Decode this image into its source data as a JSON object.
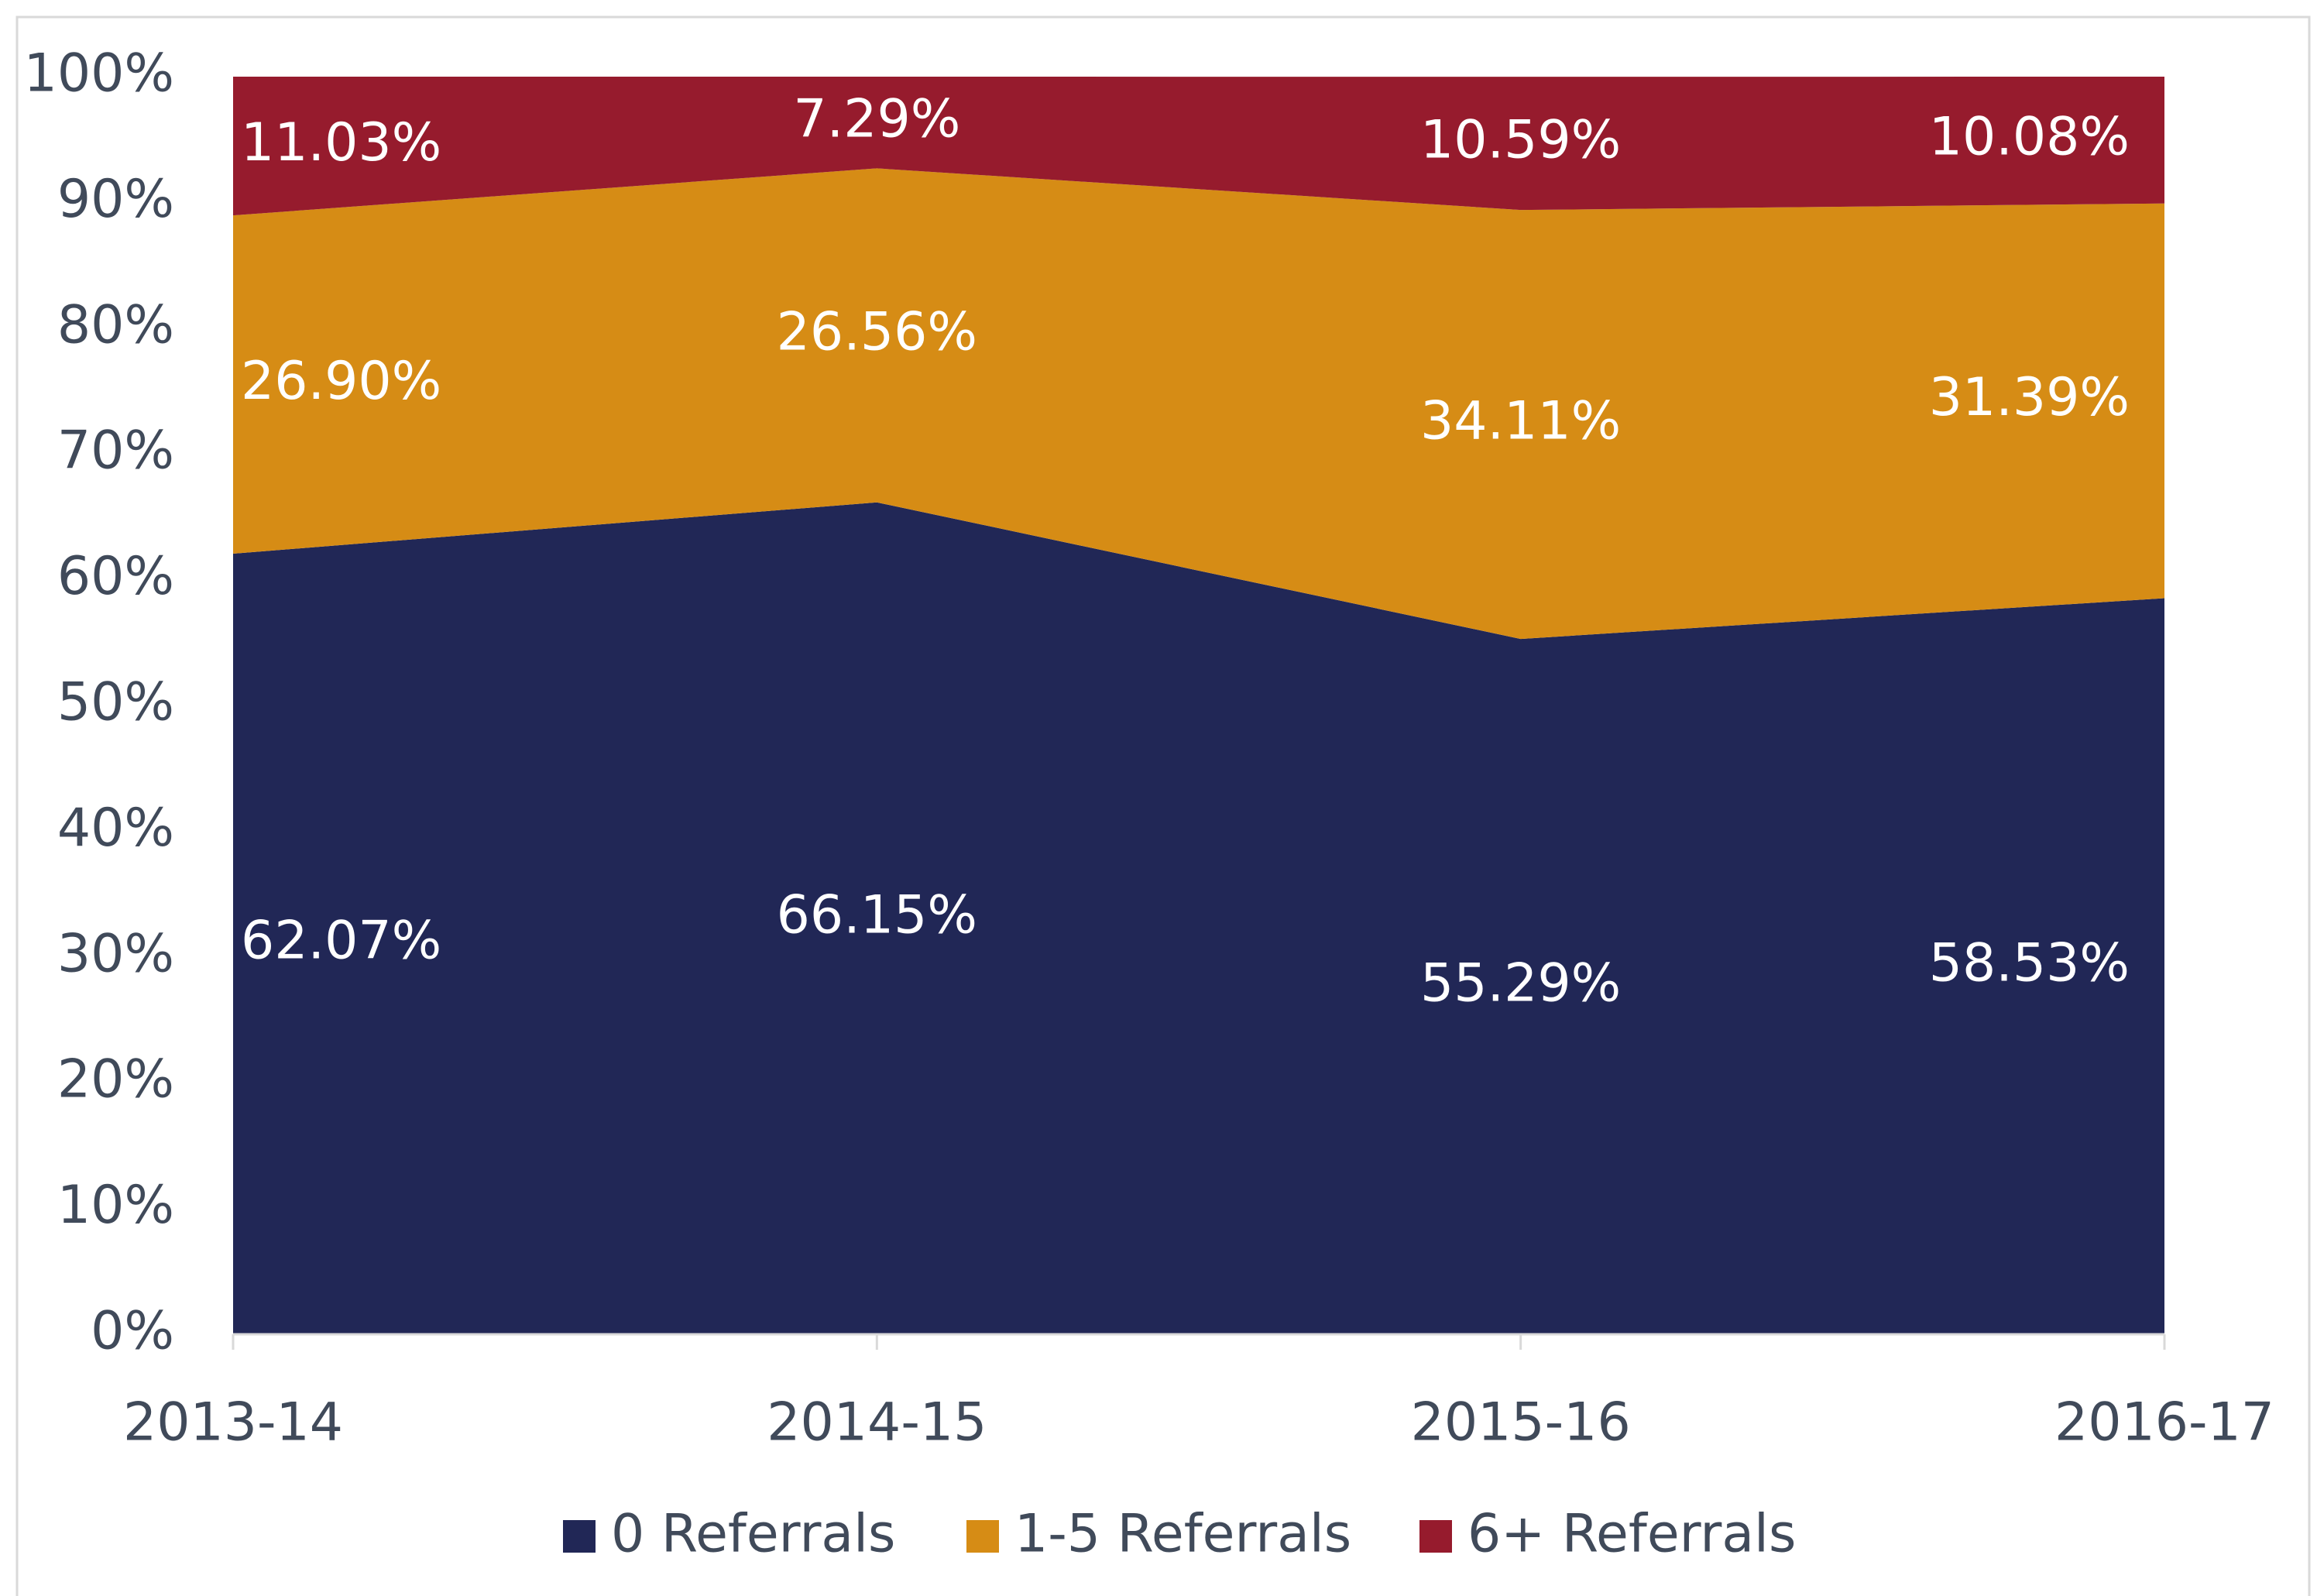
{
  "chart_data": {
    "type": "stacked_area",
    "categories": [
      "2013-14",
      "2014-15",
      "2015-16",
      "2016-17"
    ],
    "series": [
      {
        "name": "0 Referrals",
        "color": "#212756",
        "values": [
          62.07,
          66.15,
          55.29,
          58.53
        ],
        "value_labels": [
          "62.07%",
          "66.15%",
          "55.29%",
          "58.53%"
        ]
      },
      {
        "name": "1-5 Referrals",
        "color": "#d68c15",
        "values": [
          26.9,
          26.56,
          34.11,
          31.39
        ],
        "value_labels": [
          "26.90%",
          "26.56%",
          "34.11%",
          "31.39%"
        ]
      },
      {
        "name": "6+ Referrals",
        "color": "#961b2d",
        "values": [
          11.03,
          7.29,
          10.59,
          10.08
        ],
        "value_labels": [
          "11.03%",
          "7.29%",
          "10.59%",
          "10.08%"
        ]
      }
    ],
    "ylim": [
      0,
      100
    ],
    "yticks": [
      {
        "value": 0,
        "label": "0%"
      },
      {
        "value": 10,
        "label": "10%"
      },
      {
        "value": 20,
        "label": "20%"
      },
      {
        "value": 30,
        "label": "30%"
      },
      {
        "value": 40,
        "label": "40%"
      },
      {
        "value": 50,
        "label": "50%"
      },
      {
        "value": 60,
        "label": "60%"
      },
      {
        "value": 70,
        "label": "70%"
      },
      {
        "value": 80,
        "label": "80%"
      },
      {
        "value": 90,
        "label": "90%"
      },
      {
        "value": 100,
        "label": "100%"
      }
    ],
    "legend": "bottom"
  }
}
